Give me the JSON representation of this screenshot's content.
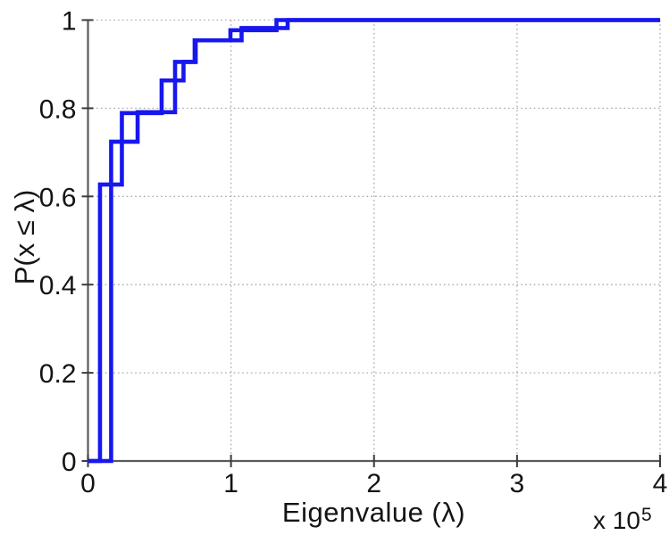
{
  "figure": {
    "background": "#ffffff",
    "line_color": "#1717ee",
    "grid_color": "#a8a8a8",
    "axis_color": "#5a5a5a",
    "tick_color": "#3c3c3c",
    "text_color": "#141414"
  },
  "chart_data": {
    "type": "line",
    "style": "ecdf-step",
    "title": "",
    "xlabel": "Eigenvalue (λ)",
    "ylabel": "P(x ≤ λ)",
    "x_multiplier_base": "x 10",
    "x_multiplier_exponent": "5",
    "xlim": [
      0,
      400000
    ],
    "ylim": [
      0,
      1
    ],
    "grid": true,
    "legend": "none",
    "x_tick_values": [
      0,
      100000,
      200000,
      300000,
      400000
    ],
    "x_tick_labels": [
      "0",
      "1",
      "2",
      "3",
      "4"
    ],
    "y_tick_values": [
      0,
      0.2,
      0.4,
      0.6,
      0.8,
      1
    ],
    "y_tick_labels": [
      "0",
      "0.2",
      "0.4",
      "0.6",
      "0.8",
      "1"
    ],
    "series": [
      {
        "name": "ecdf-curve-1",
        "color": "#1717ee",
        "steps": [
          {
            "x": 8400,
            "p": 0.627
          },
          {
            "x": 23700,
            "p": 0.789
          },
          {
            "x": 51500,
            "p": 0.863
          },
          {
            "x": 66800,
            "p": 0.905
          },
          {
            "x": 74600,
            "p": 0.954
          },
          {
            "x": 99600,
            "p": 0.977
          },
          {
            "x": 131800,
            "p": 1.0
          }
        ]
      },
      {
        "name": "ecdf-curve-2",
        "color": "#1717ee",
        "steps": [
          {
            "x": 16200,
            "p": 0.724
          },
          {
            "x": 34700,
            "p": 0.791
          },
          {
            "x": 60900,
            "p": 0.905
          },
          {
            "x": 75300,
            "p": 0.954
          },
          {
            "x": 107400,
            "p": 0.982
          },
          {
            "x": 139600,
            "p": 1.0
          }
        ]
      }
    ]
  }
}
